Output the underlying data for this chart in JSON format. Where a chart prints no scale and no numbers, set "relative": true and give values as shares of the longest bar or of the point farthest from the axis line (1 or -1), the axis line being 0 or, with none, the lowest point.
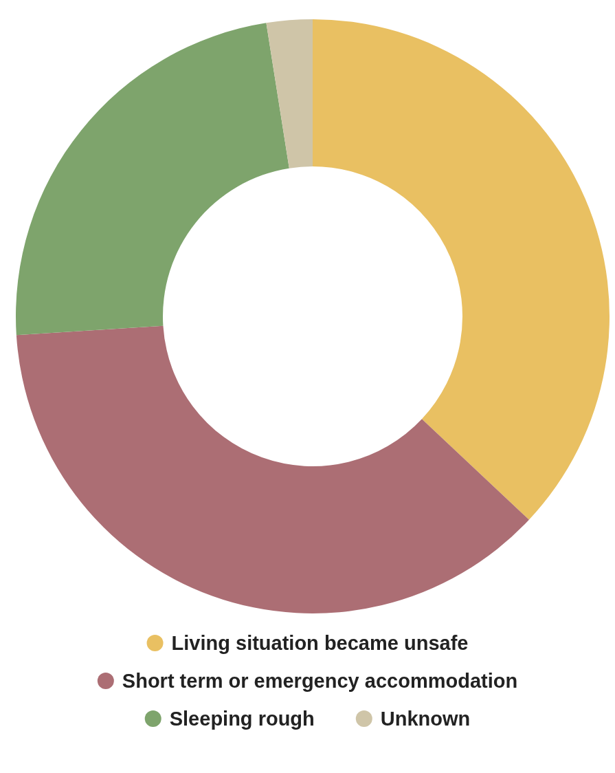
{
  "chart_data": {
    "type": "donut",
    "relative": true,
    "categories": [
      "Living situation became unsafe",
      "Short term or emergency accommodation",
      "Sleeping rough",
      "Unknown"
    ],
    "values": [
      37,
      37,
      23.5,
      2.5
    ],
    "colors": [
      "#e9c062",
      "#ac6e74",
      "#7ea46c",
      "#cfc5a8"
    ],
    "legend": "bottom"
  }
}
